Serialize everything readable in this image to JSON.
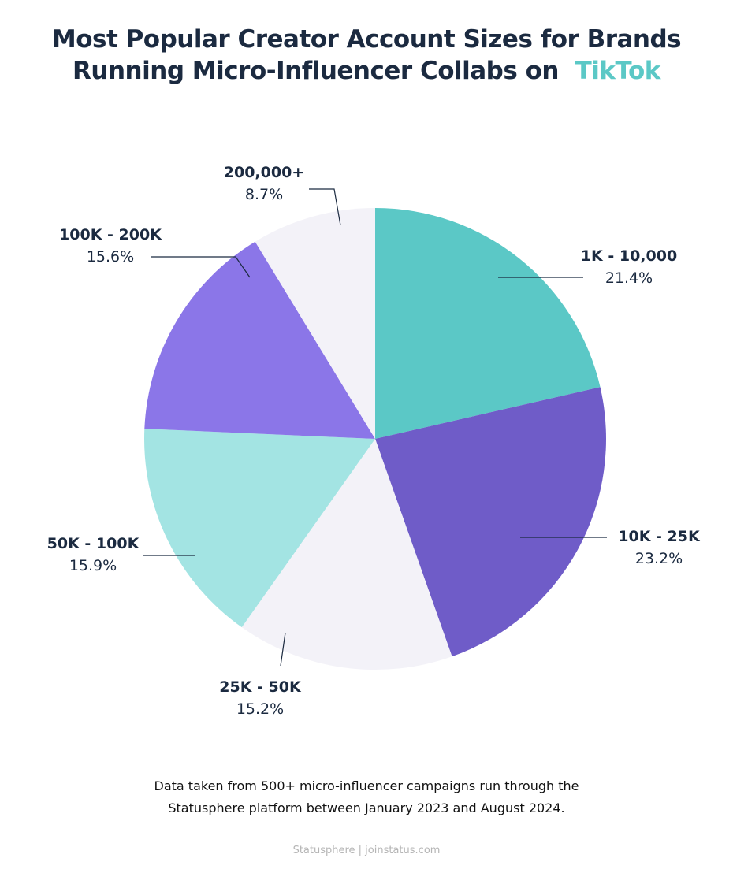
{
  "title": {
    "line1": "Most Popular Creator Account Sizes for Brands",
    "line2": "Running Micro-Influencer Collabs on",
    "accent": "TikTok",
    "accent_color": "#5bc8c6"
  },
  "chart_data": {
    "type": "pie",
    "start": "top",
    "direction": "clockwise",
    "slices": [
      {
        "label": "1K - 10,000",
        "value": 21.4,
        "display": "21.4%",
        "color": "#5bc8c6"
      },
      {
        "label": "10K - 25K",
        "value": 23.2,
        "display": "23.2%",
        "color": "#6f5cc8"
      },
      {
        "label": "25K - 50K",
        "value": 15.2,
        "display": "15.2%",
        "color": "#f3f2f8"
      },
      {
        "label": "50K - 100K",
        "value": 15.9,
        "display": "15.9%",
        "color": "#a3e4e3"
      },
      {
        "label": "100K - 200K",
        "value": 15.6,
        "display": "15.6%",
        "color": "#8b76e8"
      },
      {
        "label": "200,000+",
        "value": 8.7,
        "display": "8.7%",
        "color": "#f3f2f8"
      }
    ]
  },
  "caption": {
    "line1": "Data taken from 500+ micro-influencer campaigns run through the",
    "line2": "Statusphere platform between January 2023 and August 2024."
  },
  "footer": "Statusphere | joinstatus.com"
}
